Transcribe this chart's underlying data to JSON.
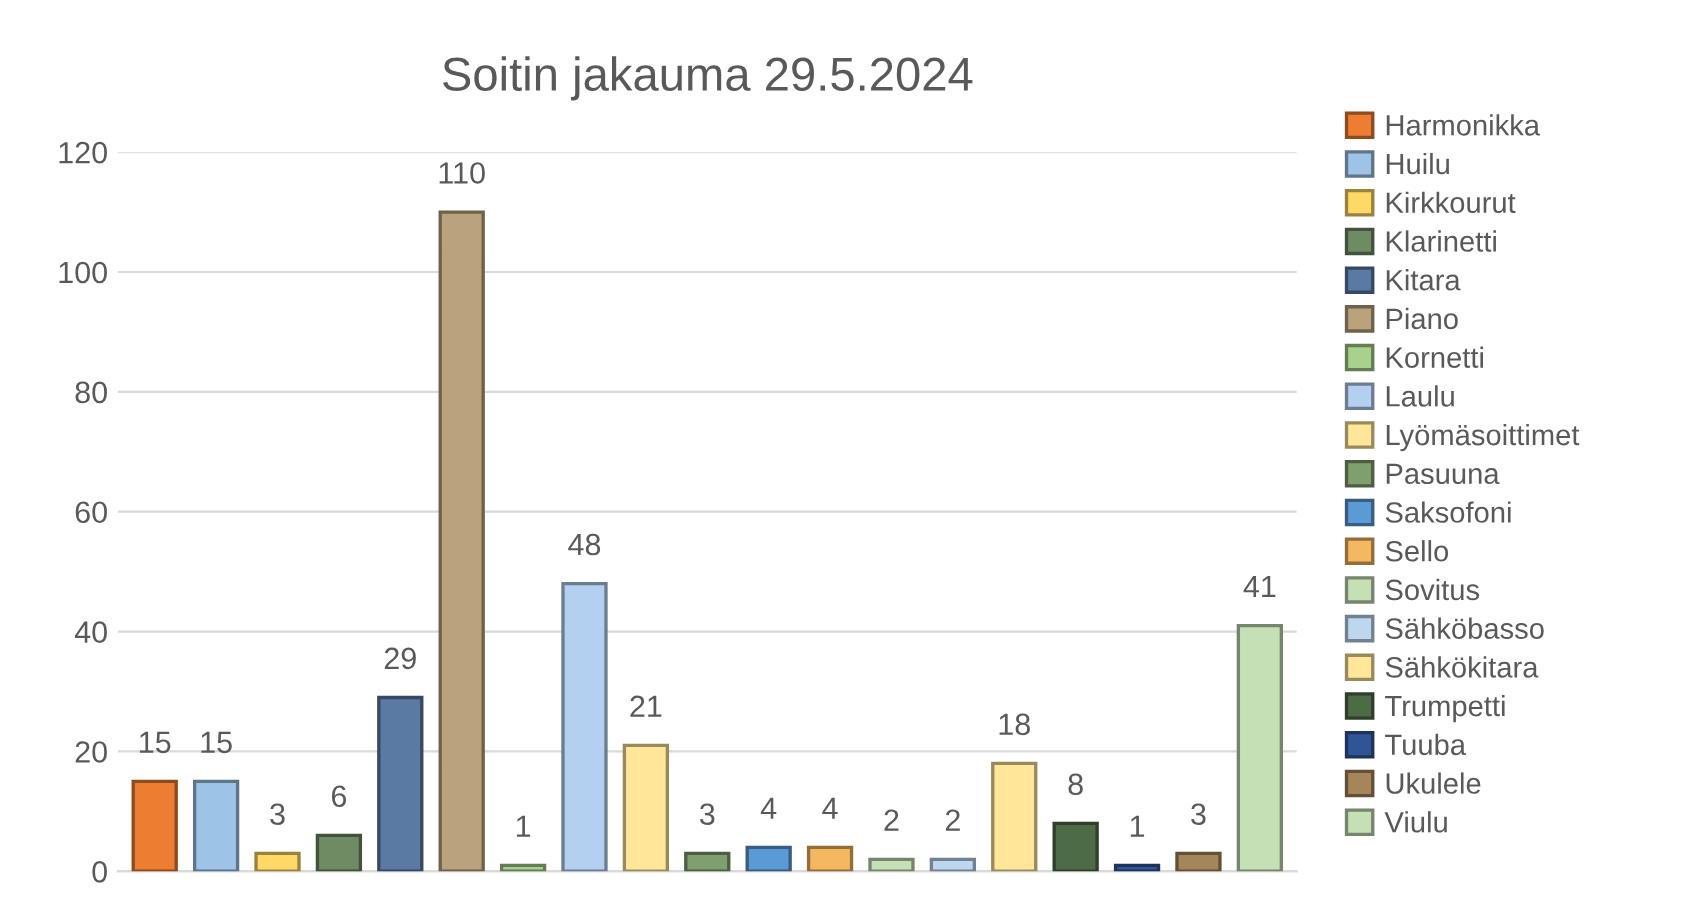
{
  "chart_data": {
    "type": "bar",
    "title": "Soitin jakauma 29.5.2024",
    "categories": [
      null,
      null,
      null,
      null,
      null,
      null,
      null,
      null,
      null,
      null,
      null,
      null,
      null,
      null,
      null,
      null,
      null,
      null,
      null
    ],
    "series": [
      {
        "name": "Harmonikka",
        "color": "#ed7d31",
        "values": [
          15,
          null,
          null,
          null,
          null,
          null,
          null,
          null,
          null,
          null,
          null,
          null,
          null,
          null,
          null,
          null,
          null,
          null,
          null
        ]
      },
      {
        "name": "Huilu",
        "color": "#9dc3e6",
        "values": [
          null,
          15,
          null,
          null,
          null,
          null,
          null,
          null,
          null,
          null,
          null,
          null,
          null,
          null,
          null,
          null,
          null,
          null,
          null
        ]
      },
      {
        "name": "Kirkkourut",
        "color": "#ffd966",
        "values": [
          null,
          null,
          3,
          null,
          null,
          null,
          null,
          null,
          null,
          null,
          null,
          null,
          null,
          null,
          null,
          null,
          null,
          null,
          null
        ]
      },
      {
        "name": "Klarinetti",
        "color": "#6e8b63",
        "values": [
          null,
          null,
          null,
          6,
          null,
          null,
          null,
          null,
          null,
          null,
          null,
          null,
          null,
          null,
          null,
          null,
          null,
          null,
          null
        ]
      },
      {
        "name": "Kitara",
        "color": "#5b7aa3",
        "values": [
          null,
          null,
          null,
          null,
          29,
          null,
          null,
          null,
          null,
          null,
          null,
          null,
          null,
          null,
          null,
          null,
          null,
          null,
          null
        ]
      },
      {
        "name": "Piano",
        "color": "#b9a27c",
        "values": [
          null,
          null,
          null,
          null,
          null,
          110,
          null,
          null,
          null,
          null,
          null,
          null,
          null,
          null,
          null,
          null,
          null,
          null,
          null
        ]
      },
      {
        "name": "Kornetti",
        "color": "#a9d18e",
        "values": [
          null,
          null,
          null,
          null,
          null,
          null,
          1,
          null,
          null,
          null,
          null,
          null,
          null,
          null,
          null,
          null,
          null,
          null,
          null
        ]
      },
      {
        "name": "Laulu",
        "color": "#b4d0f0",
        "values": [
          null,
          null,
          null,
          null,
          null,
          null,
          null,
          48,
          null,
          null,
          null,
          null,
          null,
          null,
          null,
          null,
          null,
          null,
          null
        ]
      },
      {
        "name": "Lyömäsoittimet",
        "color": "#ffe699",
        "values": [
          null,
          null,
          null,
          null,
          null,
          null,
          null,
          null,
          21,
          null,
          null,
          null,
          null,
          null,
          null,
          null,
          null,
          null,
          null
        ]
      },
      {
        "name": "Pasuuna",
        "color": "#7f9f6e",
        "values": [
          null,
          null,
          null,
          null,
          null,
          null,
          null,
          null,
          null,
          3,
          null,
          null,
          null,
          null,
          null,
          null,
          null,
          null,
          null
        ]
      },
      {
        "name": "Saksofoni",
        "color": "#5b9bd5",
        "values": [
          null,
          null,
          null,
          null,
          null,
          null,
          null,
          null,
          null,
          null,
          4,
          null,
          null,
          null,
          null,
          null,
          null,
          null,
          null
        ]
      },
      {
        "name": "Sello",
        "color": "#f4b860",
        "values": [
          null,
          null,
          null,
          null,
          null,
          null,
          null,
          null,
          null,
          null,
          null,
          4,
          null,
          null,
          null,
          null,
          null,
          null,
          null
        ]
      },
      {
        "name": "Sovitus",
        "color": "#c5e0b4",
        "values": [
          null,
          null,
          null,
          null,
          null,
          null,
          null,
          null,
          null,
          null,
          null,
          null,
          2,
          null,
          null,
          null,
          null,
          null,
          null
        ]
      },
      {
        "name": "Sähköbasso",
        "color": "#bdd7ee",
        "values": [
          null,
          null,
          null,
          null,
          null,
          null,
          null,
          null,
          null,
          null,
          null,
          null,
          null,
          2,
          null,
          null,
          null,
          null,
          null
        ]
      },
      {
        "name": "Sähkökitara",
        "color": "#ffe699",
        "values": [
          null,
          null,
          null,
          null,
          null,
          null,
          null,
          null,
          null,
          null,
          null,
          null,
          null,
          null,
          18,
          null,
          null,
          null,
          null
        ]
      },
      {
        "name": "Trumpetti",
        "color": "#4d6b45",
        "values": [
          null,
          null,
          null,
          null,
          null,
          null,
          null,
          null,
          null,
          null,
          null,
          null,
          null,
          null,
          null,
          8,
          null,
          null,
          null
        ]
      },
      {
        "name": "Tuuba",
        "color": "#2f5597",
        "values": [
          null,
          null,
          null,
          null,
          null,
          null,
          null,
          null,
          null,
          null,
          null,
          null,
          null,
          null,
          null,
          null,
          1,
          null,
          null
        ]
      },
      {
        "name": "Ukulele",
        "color": "#a5865a",
        "values": [
          null,
          null,
          null,
          null,
          null,
          null,
          null,
          null,
          null,
          null,
          null,
          null,
          null,
          null,
          null,
          null,
          null,
          3,
          null
        ]
      },
      {
        "name": "Viulu",
        "color": "#c5e0b4",
        "values": [
          null,
          null,
          null,
          null,
          null,
          null,
          null,
          null,
          null,
          null,
          null,
          null,
          null,
          null,
          null,
          null,
          null,
          null,
          41
        ]
      }
    ],
    "ylim": [
      0,
      120
    ],
    "yticks": [
      0,
      20,
      40,
      60,
      80,
      100,
      120
    ],
    "grid": "y",
    "legend": "right",
    "data_labels": true,
    "tick_labels": "y"
  }
}
